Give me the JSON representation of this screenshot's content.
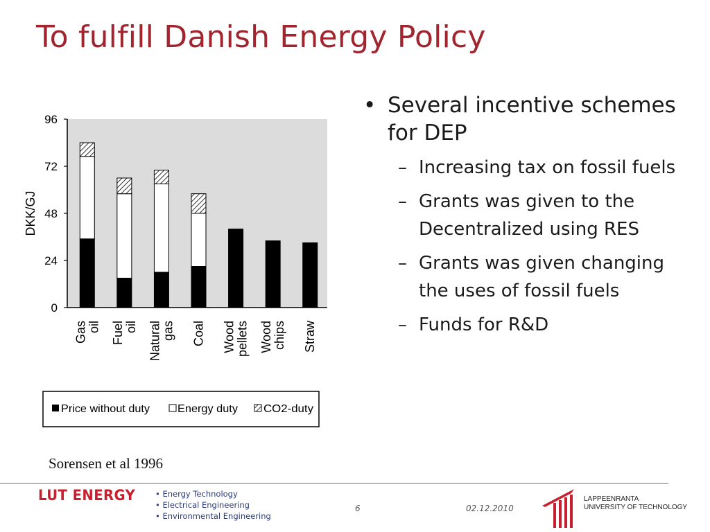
{
  "slide": {
    "title": "To fulfill Danish Energy Policy",
    "source": "Sorensen et al 1996",
    "bullets": [
      {
        "text": "Several incentive schemes for DEP",
        "sub": [
          "Increasing tax on fossil fuels",
          "Grants was given to the Decentralized using RES",
          "Grants was given changing the uses of fossil fuels",
          "Funds for R&D"
        ]
      }
    ]
  },
  "chart_data": {
    "type": "bar",
    "stacked": true,
    "ylabel": "DKK/GJ",
    "ylim": [
      0,
      96
    ],
    "yticks": [
      0,
      24,
      48,
      72,
      96
    ],
    "categories": [
      "Gas oil",
      "Fuel oil",
      "Natural gas",
      "Coal",
      "Wood pellets",
      "Wood chips",
      "Straw"
    ],
    "series": [
      {
        "name": "Price without duty",
        "values": [
          35,
          15,
          18,
          21,
          40,
          34,
          33
        ]
      },
      {
        "name": "Energy duty",
        "values": [
          42,
          43,
          45,
          27,
          0,
          0,
          0
        ]
      },
      {
        "name": "CO2-duty",
        "values": [
          7,
          8,
          7,
          10,
          0,
          0,
          0
        ]
      }
    ],
    "legend_position": "bottom",
    "plot_background": "#dcdcdc",
    "colors": {
      "price": "#000000",
      "energy": "#ffffff",
      "co2": "hatched"
    }
  },
  "footer": {
    "logo": "LUT ENERGY",
    "items": [
      "Energy Technology",
      "Electrical Engineering",
      "Environmental Engineering"
    ],
    "page": "6",
    "date": "02.12.2010",
    "university_line1": "LAPPEENRANTA",
    "university_line2": "UNIVERSITY OF TECHNOLOGY"
  },
  "colors": {
    "title": "#a1252f",
    "footer_rule": "#c94a52",
    "footer_text": "#2a3a7a"
  }
}
